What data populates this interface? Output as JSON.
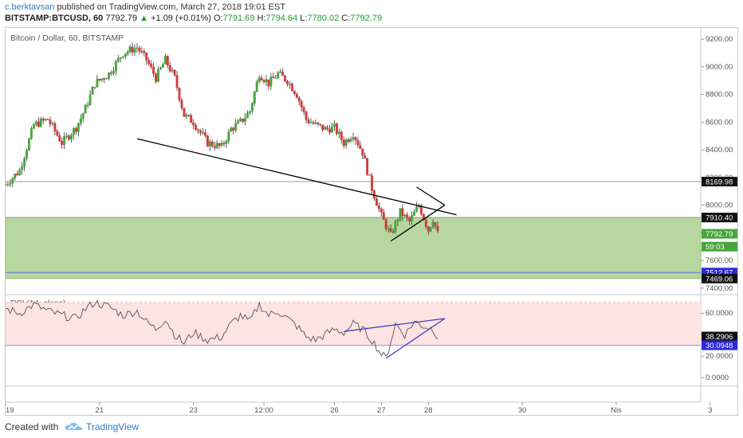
{
  "header": {
    "author": "c.berktavsan",
    "published_text": "published on TradingView.com, March 27, 2018 19:01 EST",
    "symbol": "BITSTAMP:BTCUSD, 60",
    "last": "7792.79",
    "change": "+1.09 (+0.01%)",
    "o_label": "O:",
    "o": "7791.69",
    "h_label": "H:",
    "h": "7794.64",
    "l_label": "L:",
    "l": "7780.02",
    "c_label": "C:",
    "c": "7792.79"
  },
  "footer": {
    "created_with": "Created with",
    "brand": "TradingView"
  },
  "colors": {
    "up": "#46a53c",
    "down": "#d43a3a",
    "zone": "#a9d08e",
    "rsi_band": "#fde3e1",
    "trend": "#000000",
    "rsi_trend": "#3f3fc8",
    "accent": "#2e7bc4"
  },
  "chart_data": [
    {
      "type": "candlestick",
      "title": "Bitcoin / Dollar, 60, BITSTAMP",
      "y_ticks": [
        "9200.00",
        "9000.00",
        "8800.00",
        "8600.00",
        "8400.00",
        "8200.00",
        "8000.00",
        "7800.00",
        "7600.00",
        "7400.00"
      ],
      "y_tick_values": [
        9200,
        9000,
        8800,
        8600,
        8400,
        8200,
        8000,
        7800,
        7600,
        7400
      ],
      "ylim": [
        7370,
        9270
      ],
      "x_ticks": [
        "19",
        "21",
        "23",
        "12:00",
        "26",
        "27",
        "28",
        "30",
        "Nis",
        "3"
      ],
      "x_tick_days": [
        0,
        2,
        4,
        5.5,
        7,
        8,
        9,
        11,
        13,
        15
      ],
      "xlim_days": [
        0,
        14.8
      ],
      "price_tags": [
        {
          "label": "8169.98",
          "value": 8169.98,
          "style": "dark"
        },
        {
          "label": "7910.40",
          "value": 7910.4,
          "style": "dark"
        },
        {
          "label": "7792.79",
          "value": 7792.79,
          "style": "green"
        },
        {
          "label": "59:03",
          "value": 7700,
          "style": "green"
        },
        {
          "label": "7512.67",
          "value": 7512.67,
          "style": "blue"
        },
        {
          "label": "7469.06",
          "value": 7469.06,
          "style": "dark"
        }
      ],
      "horizontal_lines": [
        8169.98,
        7910.4,
        7512.67
      ],
      "support_zone": [
        7469.06,
        7910.4
      ],
      "trendlines": [
        {
          "from": [
            2.8,
            8480
          ],
          "to": [
            9.6,
            7930
          ]
        },
        {
          "from": [
            8.2,
            7740
          ],
          "to": [
            9.35,
            8000
          ]
        },
        {
          "from": [
            9.35,
            8000
          ],
          "to": [
            8.75,
            8130
          ]
        }
      ],
      "close_path": [
        [
          0,
          8150
        ],
        [
          0.3,
          8250
        ],
        [
          0.6,
          8580
        ],
        [
          0.9,
          8620
        ],
        [
          1.2,
          8450
        ],
        [
          1.5,
          8560
        ],
        [
          1.7,
          8700
        ],
        [
          1.9,
          8880
        ],
        [
          2.2,
          8950
        ],
        [
          2.5,
          9100
        ],
        [
          2.8,
          9140
        ],
        [
          3.0,
          9050
        ],
        [
          3.2,
          8920
        ],
        [
          3.4,
          9050
        ],
        [
          3.6,
          8920
        ],
        [
          3.8,
          8650
        ],
        [
          4.0,
          8600
        ],
        [
          4.3,
          8450
        ],
        [
          4.6,
          8420
        ],
        [
          4.8,
          8550
        ],
        [
          5.0,
          8600
        ],
        [
          5.2,
          8680
        ],
        [
          5.4,
          8950
        ],
        [
          5.6,
          8880
        ],
        [
          5.8,
          8950
        ],
        [
          6.0,
          8900
        ],
        [
          6.2,
          8800
        ],
        [
          6.4,
          8620
        ],
        [
          6.6,
          8580
        ],
        [
          6.8,
          8550
        ],
        [
          7.0,
          8560
        ],
        [
          7.2,
          8450
        ],
        [
          7.4,
          8520
        ],
        [
          7.6,
          8380
        ],
        [
          7.8,
          8120
        ],
        [
          8.0,
          7920
        ],
        [
          8.2,
          7780
        ],
        [
          8.4,
          7950
        ],
        [
          8.6,
          7880
        ],
        [
          8.8,
          8000
        ],
        [
          9.0,
          7820
        ],
        [
          9.1,
          7900
        ],
        [
          9.2,
          7792.79
        ]
      ]
    },
    {
      "type": "line",
      "title": "RSI (14, close)",
      "y_ticks": [
        "60.0000",
        "40.0000",
        "20.0000",
        "0.0000"
      ],
      "y_tick_values": [
        60,
        40,
        20,
        0
      ],
      "ylim": [
        -8,
        75
      ],
      "band": [
        30,
        70
      ],
      "price_tags": [
        {
          "label": "38.2906",
          "value": 38.2906,
          "style": "dark"
        },
        {
          "label": "30.0948",
          "value": 30.0948,
          "style": "blue"
        }
      ],
      "trendlines": [
        {
          "from": [
            7.2,
            43
          ],
          "to": [
            9.35,
            55
          ]
        },
        {
          "from": [
            8.1,
            18
          ],
          "to": [
            9.35,
            55
          ]
        }
      ],
      "values_path": [
        [
          0,
          64
        ],
        [
          0.3,
          60
        ],
        [
          0.6,
          68
        ],
        [
          0.9,
          62
        ],
        [
          1.2,
          58
        ],
        [
          1.5,
          55
        ],
        [
          1.7,
          64
        ],
        [
          1.9,
          70
        ],
        [
          2.2,
          66
        ],
        [
          2.5,
          58
        ],
        [
          2.8,
          62
        ],
        [
          3.0,
          52
        ],
        [
          3.2,
          45
        ],
        [
          3.4,
          55
        ],
        [
          3.6,
          40
        ],
        [
          3.8,
          32
        ],
        [
          4.0,
          42
        ],
        [
          4.3,
          35
        ],
        [
          4.6,
          38
        ],
        [
          4.8,
          50
        ],
        [
          5.0,
          58
        ],
        [
          5.2,
          52
        ],
        [
          5.4,
          68
        ],
        [
          5.6,
          58
        ],
        [
          5.8,
          62
        ],
        [
          6.0,
          55
        ],
        [
          6.2,
          48
        ],
        [
          6.4,
          38
        ],
        [
          6.6,
          35
        ],
        [
          6.8,
          40
        ],
        [
          7.0,
          45
        ],
        [
          7.2,
          42
        ],
        [
          7.4,
          50
        ],
        [
          7.6,
          45
        ],
        [
          7.8,
          35
        ],
        [
          8.0,
          22
        ],
        [
          8.1,
          18
        ],
        [
          8.3,
          50
        ],
        [
          8.5,
          40
        ],
        [
          8.7,
          52
        ],
        [
          8.9,
          48
        ],
        [
          9.1,
          45
        ],
        [
          9.2,
          38.29
        ]
      ]
    }
  ]
}
